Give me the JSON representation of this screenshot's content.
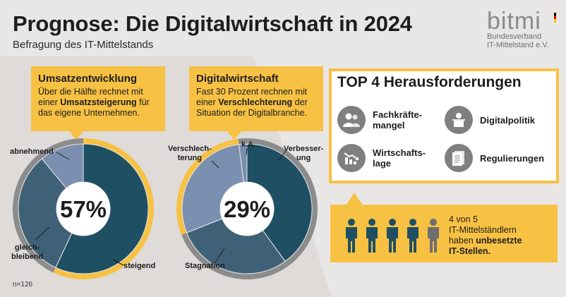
{
  "header": {
    "title": "Prognose: Die Digitalwirtschaft in 2024",
    "subtitle": "Befragung des IT-Mittelstands"
  },
  "logo": {
    "mark": "bitmi",
    "line1": "Bundesverband",
    "line2": "IT-Mittelstand e.V."
  },
  "colors": {
    "accent": "#f7c143",
    "dark_teal": "#1f4f63",
    "mid_slate": "#3f6178",
    "light_blue": "#7b8fb0",
    "gray_ring": "#8c8c8c",
    "dark_gray": "#6e6e6e"
  },
  "callout_revenue": {
    "heading": "Umsatzentwicklung",
    "text_a": "Über die Hälfte rechnet mit einer ",
    "text_bold": "Umsatzsteigerung",
    "text_b": " für das eigene Unternehmen."
  },
  "callout_digital": {
    "heading": "Digitalwirtschaft",
    "text_a": "Fast 30 Prozent rechnen mit einer ",
    "text_bold": "Verschlechterung",
    "text_b": " der Situation der Digitalbranche."
  },
  "chart_data": [
    {
      "type": "pie",
      "name": "Umsatzentwicklung",
      "center_label": "57%",
      "categories": [
        "steigend",
        "gleich-bleibend",
        "abnehmend"
      ],
      "labels": {
        "steigend": "steigend",
        "gleichbleibend": "gleich-\nbleibend",
        "abnehmend": "abnehmend"
      },
      "values": [
        57,
        32,
        11
      ]
    },
    {
      "type": "pie",
      "name": "Digitalwirtschaft",
      "center_label": "29%",
      "categories": [
        "Verbesserung",
        "Stagnation",
        "Verschlechterung",
        "k.A."
      ],
      "labels": {
        "verbesserung": "Verbesser-\nung",
        "stagnation": "Stagnation",
        "verschlechterung": "Verschlech-\nterung",
        "ka": "k.A."
      },
      "values": [
        40,
        29,
        29,
        2
      ]
    }
  ],
  "top4": {
    "heading": "TOP 4 Herausforderungen",
    "items": [
      {
        "label_1": "Fachkräfte-",
        "label_2": "mangel",
        "icon": "people-icon"
      },
      {
        "label_1": "Digitalpolitik",
        "label_2": "",
        "icon": "podium-speaker-icon"
      },
      {
        "label_1": "Wirtschafts-",
        "label_2": "lage",
        "icon": "declining-chart-icon"
      },
      {
        "label_1": "Regulierungen",
        "label_2": "",
        "icon": "document-icon"
      }
    ]
  },
  "shortage": {
    "line1": "4 von 5",
    "line2": "IT-Mittelständlern",
    "line3_a": "haben ",
    "line3_bold": "unbesetzte",
    "line4": "IT-Stellen."
  },
  "sample_note": "n=126"
}
